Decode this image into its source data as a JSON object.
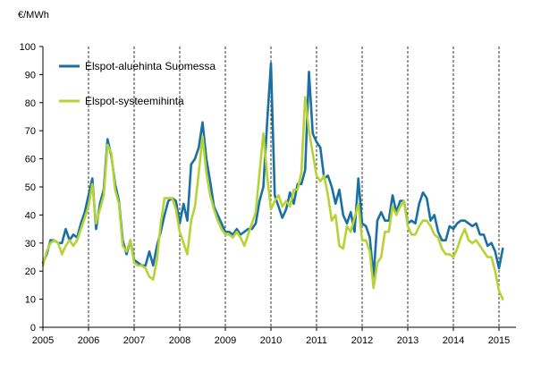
{
  "chart_data": {
    "type": "line",
    "title": "",
    "ylabel": "€/MWh",
    "xlabel": "",
    "ylim": [
      0,
      100
    ],
    "yticks": [
      "0",
      "10",
      "20",
      "30",
      "40",
      "50",
      "60",
      "70",
      "80",
      "90",
      "100"
    ],
    "xticks": [
      "2005",
      "2006",
      "2007",
      "2008",
      "2009",
      "2010",
      "2011",
      "2012",
      "2013",
      "2014",
      "2015"
    ],
    "x_start": 2005,
    "x_step_months": 1,
    "grid": "vertical dashed lines at each year",
    "legend_position": "top-left",
    "series": [
      {
        "name": "Elspot-aluehinta Suomessa",
        "color": "#1a6fa3",
        "values": [
          23,
          26,
          31,
          31,
          30,
          30,
          35,
          31,
          33,
          32,
          37,
          41,
          47,
          53,
          35,
          44,
          49,
          67,
          61,
          51,
          45,
          31,
          26,
          31,
          24,
          23,
          22,
          22,
          27,
          22,
          29,
          34,
          40,
          45,
          46,
          45,
          37,
          44,
          38,
          58,
          60,
          64,
          73,
          60,
          52,
          43,
          40,
          37,
          34,
          34,
          33,
          35,
          33,
          34,
          35,
          35,
          37,
          45,
          50,
          73,
          94,
          47,
          43,
          39,
          42,
          48,
          44,
          51,
          51,
          56,
          91,
          69,
          66,
          64,
          53,
          54,
          50,
          44,
          49,
          40,
          37,
          41,
          34,
          53,
          37,
          36,
          32,
          18,
          38,
          41,
          38,
          38,
          47,
          41,
          45,
          45,
          37,
          38,
          37,
          44,
          48,
          46,
          38,
          40,
          34,
          31,
          31,
          36,
          35,
          37,
          38,
          38,
          37,
          36,
          37,
          33,
          33,
          29,
          30,
          27,
          21,
          28
        ]
      },
      {
        "name": "Elspot-systeemihinta",
        "color": "#b5d334",
        "values": [
          22,
          27,
          30,
          31,
          30,
          26,
          29,
          31,
          29,
          31,
          35,
          39,
          43,
          51,
          37,
          42,
          47,
          65,
          62,
          49,
          44,
          29,
          27,
          31,
          23,
          22,
          22,
          21,
          18,
          17,
          24,
          37,
          46,
          46,
          46,
          42,
          34,
          30,
          26,
          38,
          43,
          55,
          68,
          55,
          47,
          42,
          38,
          35,
          33,
          33,
          32,
          34,
          32,
          29,
          33,
          37,
          41,
          55,
          69,
          54,
          42,
          45,
          47,
          43,
          45,
          43,
          49,
          49,
          55,
          82,
          70,
          62,
          54,
          52,
          54,
          47,
          38,
          40,
          29,
          28,
          36,
          34,
          39,
          44,
          31,
          31,
          27,
          14,
          23,
          25,
          34,
          34,
          43,
          40,
          43,
          45,
          36,
          33,
          33,
          36,
          38,
          38,
          36,
          33,
          32,
          28,
          26,
          26,
          25,
          28,
          32,
          35,
          31,
          30,
          31,
          29,
          27,
          25,
          25,
          20,
          13,
          10
        ]
      }
    ]
  }
}
